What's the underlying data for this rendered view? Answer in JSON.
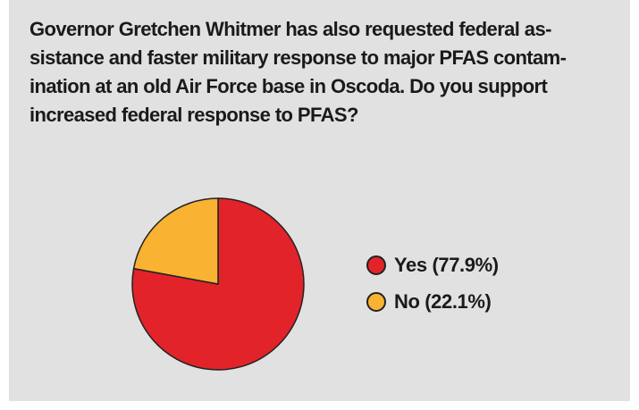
{
  "question": "Governor Gretchen Whitmer has also requested federal as-sistance and faster military response to major PFAS contam-ination at an old Air Force base in Oscoda. Do you support increased federal response to PFAS?",
  "question_lines": [
    "Governor Gretchen Whitmer has also requested federal as-",
    "sistance and faster military response to major PFAS contam-",
    "ination at an old Air Force base in Oscoda. Do you support",
    "increased federal response to PFAS?"
  ],
  "colors": {
    "background": "#e1e1e1",
    "yes": "#e2232a",
    "no": "#f9b232",
    "outline": "#222222"
  },
  "chart_data": {
    "type": "pie",
    "title": "",
    "slices": [
      {
        "label": "Yes (77.9%)",
        "category": "Yes",
        "value": 77.9,
        "color": "#e2232a"
      },
      {
        "label": "No (22.1%)",
        "category": "No",
        "value": 22.1,
        "color": "#f9b232"
      }
    ],
    "start_angle": "12 o'clock",
    "direction": "clockwise",
    "legend_position": "right"
  }
}
